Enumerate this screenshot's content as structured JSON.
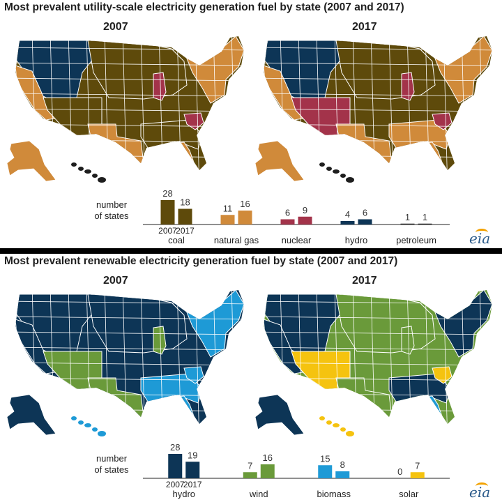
{
  "colors": {
    "coal": "#5e4a0b",
    "natural_gas": "#d08a3a",
    "nuclear": "#a3334a",
    "hydro": "#0d3556",
    "petroleum": "#1e1e1e",
    "wind": "#6a9a3a",
    "biomass": "#1e9ad6",
    "solar": "#f5c30f",
    "border": "#ffffff"
  },
  "top": {
    "title": "Most prevalent utility-scale electricity generation fuel by state (2007 and 2017)",
    "year_left": "2007",
    "year_right": "2017",
    "legend_label_line1": "number",
    "legend_label_line2": "of states",
    "year_label_a": "2007",
    "year_label_b": "2017",
    "logo": "eia",
    "map_2007": {
      "base": "coal",
      "west": "hydro",
      "california": "natural_gas",
      "southwest": "coal",
      "texas": "natural_gas",
      "southeast": "coal",
      "florida": "natural_gas",
      "midwest": "coal",
      "illinois": "nuclear",
      "northeast": "natural_gas",
      "southcarolina": "nuclear",
      "alaska": "natural_gas",
      "hawaii": "petroleum"
    },
    "map_2017": {
      "base": "coal",
      "west": "hydro",
      "california": "natural_gas",
      "southwest": "nuclear",
      "texas": "natural_gas",
      "southeast": "natural_gas",
      "florida": "natural_gas",
      "midwest": "coal",
      "illinois": "nuclear",
      "northeast": "natural_gas",
      "southcarolina": "nuclear",
      "alaska": "natural_gas",
      "hawaii": "petroleum"
    }
  },
  "bottom": {
    "title": "Most prevalent renewable electricity generation fuel by state (2007 and 2017)",
    "year_left": "2007",
    "year_right": "2017",
    "legend_label_line1": "number",
    "legend_label_line2": "of states",
    "year_label_a": "2007",
    "year_label_b": "2017",
    "logo": "eia",
    "map_2007": {
      "base": "hydro",
      "west": "hydro",
      "california": "hydro",
      "southwest": "wind",
      "texas": "wind",
      "southeast": "biomass",
      "florida": "biomass",
      "midwest": "hydro",
      "illinois": "wind",
      "northeast": "biomass",
      "southcarolina": "biomass",
      "alaska": "hydro",
      "hawaii": "biomass"
    },
    "map_2017": {
      "base": "wind",
      "west": "hydro",
      "california": "hydro",
      "southwest": "solar",
      "texas": "wind",
      "southeast": "hydro",
      "florida": "biomass",
      "midwest": "wind",
      "illinois": "wind",
      "northeast": "hydro",
      "southcarolina": "solar",
      "alaska": "hydro",
      "hawaii": "solar"
    }
  },
  "chart_data": [
    {
      "type": "bar",
      "categories": [
        "coal",
        "natural gas",
        "nuclear",
        "hydro",
        "petroleum"
      ],
      "series": [
        {
          "name": "2007",
          "values": [
            28,
            11,
            6,
            4,
            1
          ]
        },
        {
          "name": "2017",
          "values": [
            18,
            16,
            9,
            6,
            1
          ]
        }
      ],
      "category_colors": [
        "#5e4a0b",
        "#d08a3a",
        "#a3334a",
        "#0d3556",
        "#1e1e1e"
      ],
      "ylabel": "number of states"
    },
    {
      "type": "bar",
      "categories": [
        "hydro",
        "wind",
        "biomass",
        "solar"
      ],
      "series": [
        {
          "name": "2007",
          "values": [
            28,
            7,
            15,
            0
          ]
        },
        {
          "name": "2017",
          "values": [
            19,
            16,
            8,
            7
          ]
        }
      ],
      "category_colors": [
        "#0d3556",
        "#6a9a3a",
        "#1e9ad6",
        "#f5c30f"
      ],
      "ylabel": "number of states"
    }
  ]
}
